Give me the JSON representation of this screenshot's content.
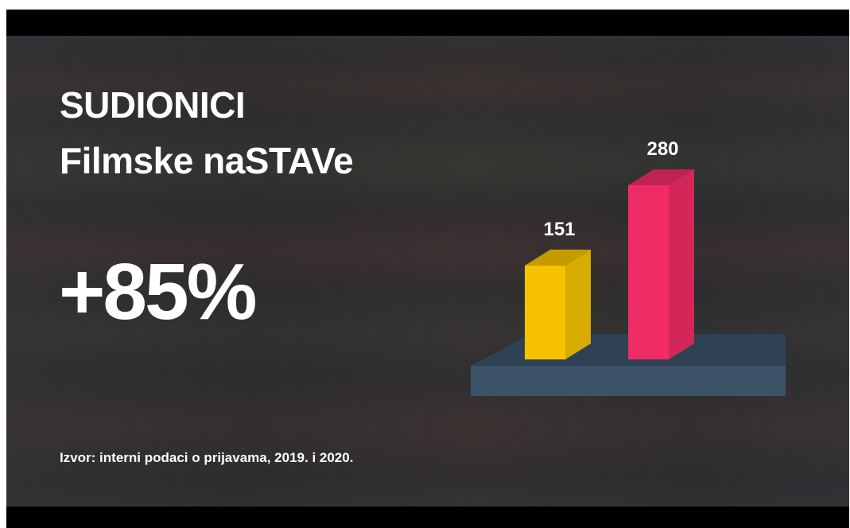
{
  "title_line1": "SUDIONICI",
  "title_line2": "Filmske naSTAVe",
  "headline": "+85%",
  "source": "Izvor: interni podaci o prijavama, 2019. i 2020.",
  "colors": {
    "bar_1": "#f6c200",
    "bar_2": "#f02c66",
    "platform": "#3c5266"
  },
  "chart_data": {
    "type": "bar",
    "title": "",
    "categories": [
      "",
      ""
    ],
    "values": [
      151,
      280
    ],
    "data_labels": [
      "151",
      "280"
    ],
    "xlabel": "",
    "ylabel": "",
    "ylim": [
      0,
      300
    ],
    "grid": false,
    "legend": "none",
    "style": "3d-columns"
  }
}
